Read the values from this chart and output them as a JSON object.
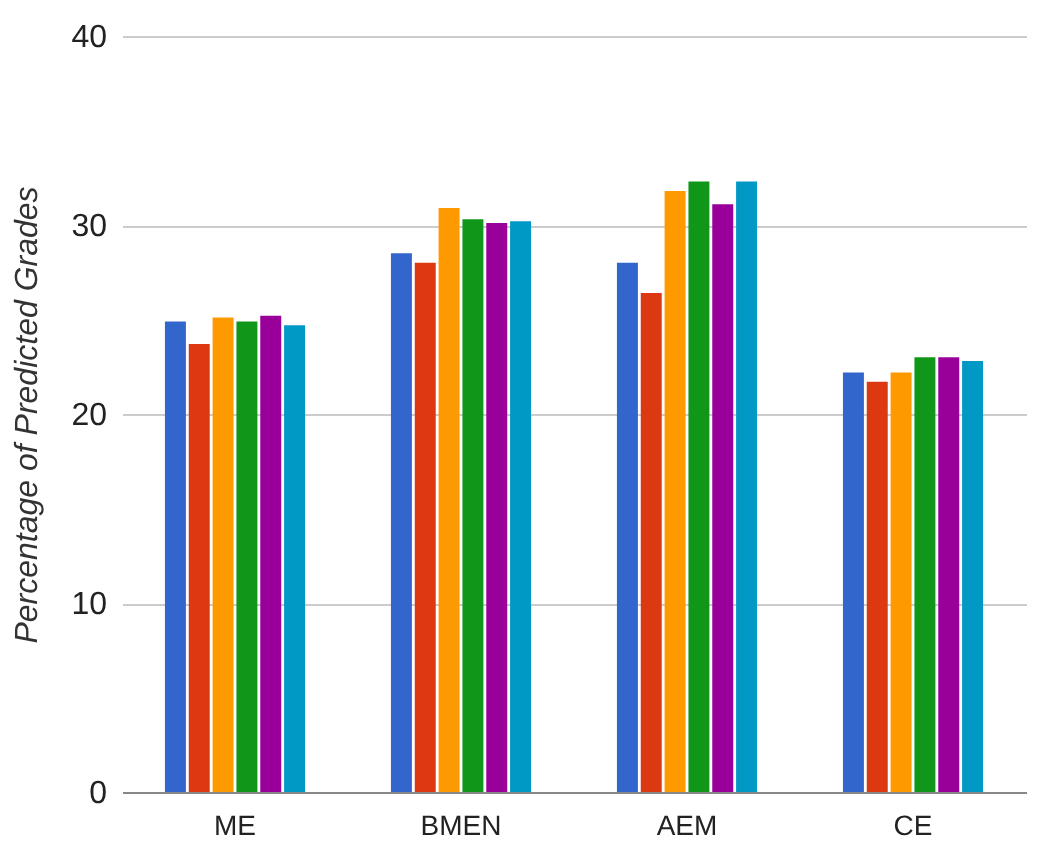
{
  "chart_data": {
    "type": "bar",
    "ylabel": "Percentage of Predicted Grades",
    "categories": [
      "ME",
      "BMEN",
      "AEM",
      "CE"
    ],
    "series": [
      {
        "color": "#3366cc",
        "values": [
          24.9,
          28.5,
          28.0,
          22.2
        ]
      },
      {
        "color": "#dc3912",
        "values": [
          23.7,
          28.0,
          26.4,
          21.7
        ]
      },
      {
        "color": "#ff9900",
        "values": [
          25.1,
          30.9,
          31.8,
          22.2
        ]
      },
      {
        "color": "#109618",
        "values": [
          24.9,
          30.3,
          32.3,
          23.0
        ]
      },
      {
        "color": "#990099",
        "values": [
          25.2,
          30.1,
          31.1,
          23.0
        ]
      },
      {
        "color": "#0099c6",
        "values": [
          24.7,
          30.2,
          32.3,
          22.8
        ]
      }
    ],
    "ylim": [
      0,
      40
    ],
    "yticks": [
      0,
      10,
      20,
      30,
      40
    ],
    "grid": "y",
    "legend": false
  }
}
